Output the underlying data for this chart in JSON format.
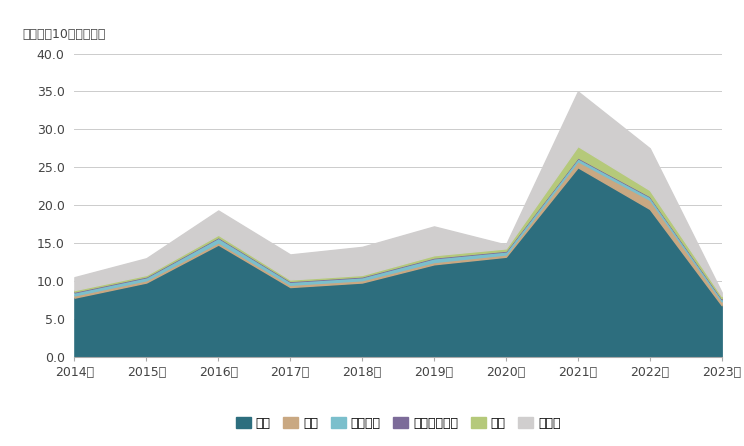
{
  "years": [
    "2014年",
    "2015年",
    "2016年",
    "2017年",
    "2018年",
    "2019年",
    "2020年",
    "2021年",
    "2022年",
    "2023年"
  ],
  "series": {
    "米国": [
      7.8,
      9.8,
      14.8,
      9.2,
      9.8,
      12.2,
      13.2,
      25.0,
      19.5,
      6.8
    ],
    "中国": [
      0.3,
      0.3,
      0.3,
      0.3,
      0.3,
      0.3,
      0.3,
      0.8,
      1.2,
      0.5
    ],
    "フランス": [
      0.4,
      0.4,
      0.6,
      0.4,
      0.4,
      0.5,
      0.4,
      0.4,
      0.4,
      0.3
    ],
    "シンガポール": [
      0.1,
      0.1,
      0.1,
      0.1,
      0.1,
      0.1,
      0.1,
      0.1,
      0.1,
      0.1
    ],
    "韓国": [
      0.2,
      0.2,
      0.3,
      0.2,
      0.2,
      0.3,
      0.3,
      1.5,
      0.8,
      0.3
    ],
    "その他": [
      1.7,
      2.2,
      3.2,
      3.3,
      3.7,
      3.8,
      0.5,
      7.2,
      5.5,
      0.5
    ]
  },
  "colors": {
    "米国": "#2d6e7e",
    "中国": "#c9a882",
    "フランス": "#7bbfcc",
    "シンガポール": "#7c6b99",
    "韓国": "#b5c97a",
    "その他": "#d0cece"
  },
  "ylabel": "投資額（10億米ドル）",
  "ylim": [
    0,
    40
  ],
  "yticks": [
    0.0,
    5.0,
    10.0,
    15.0,
    20.0,
    25.0,
    30.0,
    35.0,
    40.0
  ],
  "background_color": "#ffffff",
  "grid_color": "#cccccc",
  "font_color": "#444444"
}
